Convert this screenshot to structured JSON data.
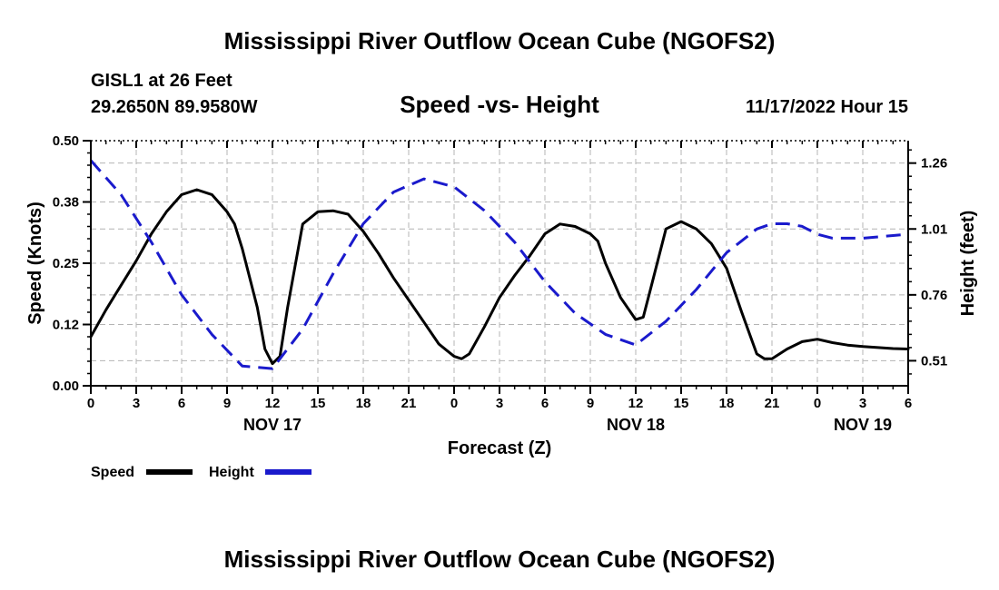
{
  "header": {
    "title": "Mississippi River Outflow Ocean Cube (NGOFS2)",
    "station": "GISL1 at 26 Feet",
    "coords": "29.2650N  89.9580W",
    "subtitle": "Speed -vs- Height",
    "datetime": "11/17/2022 Hour 15"
  },
  "footer": {
    "title": "Mississippi River Outflow Ocean Cube (NGOFS2)"
  },
  "legend": {
    "speed_label": "Speed",
    "height_label": "Height"
  },
  "colors": {
    "speed": "#000000",
    "height": "#1a1acc",
    "grid": "#b4b4b4"
  },
  "chart_data": {
    "type": "line",
    "title": "Speed -vs- Height",
    "xlabel": "Forecast (Z)",
    "ylabel": "Speed (Knots)",
    "y2label": "Height (feet)",
    "x_unit": "hours from Nov 17 00Z",
    "xlim": [
      0,
      54
    ],
    "ylim": [
      0,
      0.5
    ],
    "y2lim": [
      0.415,
      1.345
    ],
    "grid": true,
    "x_ticks": [
      0,
      3,
      6,
      9,
      12,
      15,
      18,
      21,
      24,
      27,
      30,
      33,
      36,
      39,
      42,
      45,
      48,
      51,
      54
    ],
    "x_tick_labels": [
      "0",
      "3",
      "6",
      "9",
      "12",
      "15",
      "18",
      "21",
      "0",
      "3",
      "6",
      "9",
      "12",
      "15",
      "18",
      "21",
      "0",
      "3",
      "6"
    ],
    "date_labels": [
      {
        "x": 12,
        "label": "NOV 17"
      },
      {
        "x": 36,
        "label": "NOV 18"
      },
      {
        "x": 51,
        "label": "NOV 19"
      }
    ],
    "y_ticks": [
      0.0,
      0.125,
      0.25,
      0.375,
      0.5
    ],
    "y_tick_labels": [
      "0.00",
      "0.12",
      "0.25",
      "0.38",
      "0.50"
    ],
    "y2_ticks": [
      0.51,
      0.76,
      1.01,
      1.26
    ],
    "y2_tick_labels": [
      "0.51",
      "0.76",
      "1.01",
      "1.26"
    ],
    "series": [
      {
        "name": "Speed",
        "axis": "left",
        "style": "solid",
        "points": [
          [
            0,
            0.1
          ],
          [
            1,
            0.155
          ],
          [
            2,
            0.205
          ],
          [
            3,
            0.255
          ],
          [
            4,
            0.31
          ],
          [
            5,
            0.355
          ],
          [
            6,
            0.39
          ],
          [
            7,
            0.4
          ],
          [
            8,
            0.39
          ],
          [
            9,
            0.355
          ],
          [
            9.5,
            0.33
          ],
          [
            10,
            0.28
          ],
          [
            11,
            0.16
          ],
          [
            11.5,
            0.075
          ],
          [
            12,
            0.045
          ],
          [
            12.5,
            0.06
          ],
          [
            13,
            0.16
          ],
          [
            14,
            0.33
          ],
          [
            15,
            0.355
          ],
          [
            16,
            0.357
          ],
          [
            17,
            0.35
          ],
          [
            18,
            0.315
          ],
          [
            19,
            0.27
          ],
          [
            20,
            0.22
          ],
          [
            21,
            0.175
          ],
          [
            22,
            0.13
          ],
          [
            23,
            0.085
          ],
          [
            24,
            0.06
          ],
          [
            24.5,
            0.055
          ],
          [
            25,
            0.065
          ],
          [
            26,
            0.12
          ],
          [
            27,
            0.18
          ],
          [
            28,
            0.225
          ],
          [
            29,
            0.265
          ],
          [
            30,
            0.31
          ],
          [
            31,
            0.33
          ],
          [
            32,
            0.325
          ],
          [
            33,
            0.31
          ],
          [
            33.5,
            0.295
          ],
          [
            34,
            0.25
          ],
          [
            35,
            0.18
          ],
          [
            36,
            0.135
          ],
          [
            36.5,
            0.14
          ],
          [
            37,
            0.2
          ],
          [
            38,
            0.32
          ],
          [
            39,
            0.335
          ],
          [
            40,
            0.32
          ],
          [
            41,
            0.29
          ],
          [
            42,
            0.24
          ],
          [
            43,
            0.15
          ],
          [
            44,
            0.065
          ],
          [
            44.5,
            0.055
          ],
          [
            45,
            0.055
          ],
          [
            46,
            0.075
          ],
          [
            47,
            0.09
          ],
          [
            48,
            0.095
          ],
          [
            49,
            0.088
          ],
          [
            50,
            0.083
          ],
          [
            51,
            0.08
          ],
          [
            52,
            0.078
          ],
          [
            53,
            0.076
          ],
          [
            54,
            0.075
          ]
        ]
      },
      {
        "name": "Height",
        "axis": "right",
        "style": "dashed",
        "points": [
          [
            0,
            1.27
          ],
          [
            2,
            1.14
          ],
          [
            4,
            0.96
          ],
          [
            6,
            0.76
          ],
          [
            8,
            0.61
          ],
          [
            10,
            0.49
          ],
          [
            12,
            0.48
          ],
          [
            14,
            0.63
          ],
          [
            16,
            0.84
          ],
          [
            18,
            1.03
          ],
          [
            20,
            1.15
          ],
          [
            22,
            1.2
          ],
          [
            24,
            1.17
          ],
          [
            26,
            1.08
          ],
          [
            28,
            0.96
          ],
          [
            30,
            0.81
          ],
          [
            32,
            0.69
          ],
          [
            34,
            0.61
          ],
          [
            36,
            0.57
          ],
          [
            38,
            0.66
          ],
          [
            40,
            0.78
          ],
          [
            42,
            0.92
          ],
          [
            44,
            1.01
          ],
          [
            45,
            1.03
          ],
          [
            46,
            1.03
          ],
          [
            47,
            1.02
          ],
          [
            48,
            0.99
          ],
          [
            49,
            0.975
          ],
          [
            50,
            0.975
          ],
          [
            51,
            0.975
          ],
          [
            52,
            0.98
          ],
          [
            53,
            0.985
          ],
          [
            54,
            0.99
          ]
        ]
      }
    ]
  }
}
